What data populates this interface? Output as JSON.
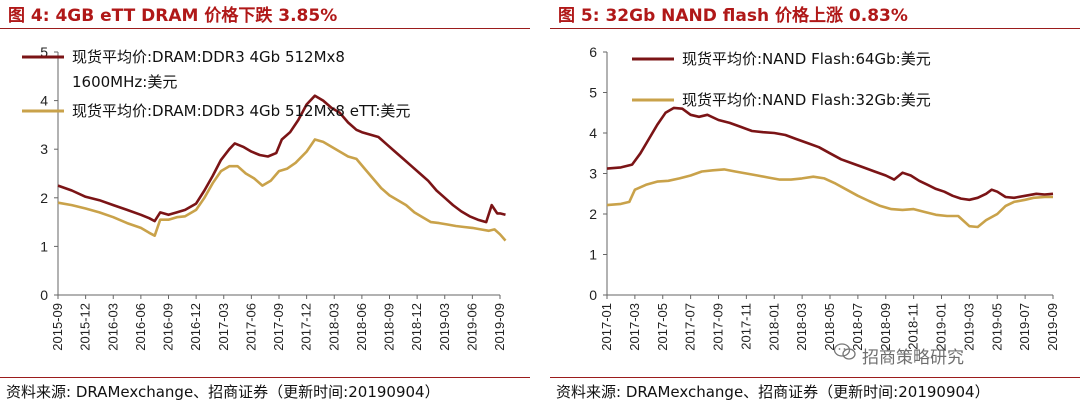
{
  "figures": [
    {
      "title": "图 4:  4GB eTT DRAM 价格下跌 3.85%",
      "source": "资料来源:  DRAMexchange、招商证券（更新时间:20190904）",
      "chart_data": {
        "type": "line",
        "x_ticks": [
          "2015-09",
          "2015-12",
          "2016-03",
          "2016-06",
          "2016-09",
          "2016-12",
          "2017-03",
          "2017-06",
          "2017-09",
          "2017-12",
          "2018-03",
          "2018-06",
          "2018-09",
          "2018-12",
          "2019-03",
          "2019-06",
          "2019-09"
        ],
        "ylim": [
          0,
          5
        ],
        "y_ticks": [
          "0",
          "1",
          "2",
          "3",
          "4",
          "5"
        ],
        "legend_position": "top-left",
        "series": [
          {
            "name": "现货平均价:DRAM:DDR3 4Gb 512Mx8 1600MHz:美元",
            "color": "#7b1416",
            "points": [
              [
                0,
                2.25
              ],
              [
                0.5,
                2.15
              ],
              [
                1,
                2.02
              ],
              [
                1.5,
                1.95
              ],
              [
                2,
                1.85
              ],
              [
                2.5,
                1.75
              ],
              [
                3,
                1.65
              ],
              [
                3.3,
                1.58
              ],
              [
                3.5,
                1.52
              ],
              [
                3.7,
                1.7
              ],
              [
                4,
                1.65
              ],
              [
                4.3,
                1.7
              ],
              [
                4.6,
                1.75
              ],
              [
                5,
                1.88
              ],
              [
                5.3,
                2.15
              ],
              [
                5.6,
                2.45
              ],
              [
                5.9,
                2.78
              ],
              [
                6.2,
                3.0
              ],
              [
                6.4,
                3.12
              ],
              [
                6.7,
                3.05
              ],
              [
                7,
                2.95
              ],
              [
                7.3,
                2.88
              ],
              [
                7.6,
                2.85
              ],
              [
                7.9,
                2.92
              ],
              [
                8.1,
                3.2
              ],
              [
                8.4,
                3.35
              ],
              [
                8.7,
                3.6
              ],
              [
                9,
                3.92
              ],
              [
                9.3,
                4.1
              ],
              [
                9.6,
                4.0
              ],
              [
                9.9,
                3.85
              ],
              [
                10.2,
                3.75
              ],
              [
                10.5,
                3.55
              ],
              [
                10.8,
                3.4
              ],
              [
                11,
                3.35
              ],
              [
                11.3,
                3.3
              ],
              [
                11.6,
                3.25
              ],
              [
                11.9,
                3.1
              ],
              [
                12.2,
                2.95
              ],
              [
                12.5,
                2.8
              ],
              [
                12.8,
                2.65
              ],
              [
                13.1,
                2.5
              ],
              [
                13.4,
                2.35
              ],
              [
                13.7,
                2.15
              ],
              [
                14,
                2.0
              ],
              [
                14.3,
                1.85
              ],
              [
                14.6,
                1.72
              ],
              [
                14.9,
                1.62
              ],
              [
                15.2,
                1.55
              ],
              [
                15.5,
                1.5
              ],
              [
                15.7,
                1.85
              ],
              [
                15.9,
                1.68
              ],
              [
                16,
                1.68
              ],
              [
                16.2,
                1.65
              ]
            ]
          },
          {
            "name": "现货平均价:DRAM:DDR3 4Gb 512Mx8 eTT:美元",
            "color": "#c9a24a",
            "points": [
              [
                0,
                1.9
              ],
              [
                0.5,
                1.85
              ],
              [
                1,
                1.78
              ],
              [
                1.5,
                1.7
              ],
              [
                2,
                1.6
              ],
              [
                2.5,
                1.48
              ],
              [
                3,
                1.38
              ],
              [
                3.3,
                1.28
              ],
              [
                3.5,
                1.22
              ],
              [
                3.7,
                1.55
              ],
              [
                4,
                1.55
              ],
              [
                4.3,
                1.6
              ],
              [
                4.6,
                1.62
              ],
              [
                5,
                1.75
              ],
              [
                5.3,
                2.0
              ],
              [
                5.6,
                2.3
              ],
              [
                5.9,
                2.55
              ],
              [
                6.2,
                2.65
              ],
              [
                6.5,
                2.65
              ],
              [
                6.8,
                2.5
              ],
              [
                7.1,
                2.4
              ],
              [
                7.4,
                2.25
              ],
              [
                7.7,
                2.35
              ],
              [
                8,
                2.55
              ],
              [
                8.3,
                2.6
              ],
              [
                8.6,
                2.72
              ],
              [
                9,
                2.95
              ],
              [
                9.3,
                3.2
              ],
              [
                9.6,
                3.15
              ],
              [
                9.9,
                3.05
              ],
              [
                10.2,
                2.95
              ],
              [
                10.5,
                2.85
              ],
              [
                10.8,
                2.8
              ],
              [
                11.1,
                2.6
              ],
              [
                11.4,
                2.4
              ],
              [
                11.7,
                2.2
              ],
              [
                12,
                2.05
              ],
              [
                12.3,
                1.95
              ],
              [
                12.6,
                1.85
              ],
              [
                12.9,
                1.7
              ],
              [
                13.2,
                1.6
              ],
              [
                13.5,
                1.5
              ],
              [
                13.8,
                1.48
              ],
              [
                14.1,
                1.45
              ],
              [
                14.4,
                1.42
              ],
              [
                14.7,
                1.4
              ],
              [
                15,
                1.38
              ],
              [
                15.3,
                1.35
              ],
              [
                15.6,
                1.32
              ],
              [
                15.8,
                1.35
              ],
              [
                16,
                1.25
              ],
              [
                16.2,
                1.12
              ]
            ]
          }
        ]
      }
    },
    {
      "title": "图 5:  32Gb NAND flash 价格上涨 0.83%",
      "source": "资料来源:  DRAMexchange、招商证券（更新时间:20190904）",
      "chart_data": {
        "type": "line",
        "x_ticks": [
          "2017-01",
          "2017-03",
          "2017-05",
          "2017-07",
          "2017-09",
          "2017-11",
          "2018-01",
          "2018-03",
          "2018-05",
          "2018-07",
          "2018-09",
          "2018-11",
          "2019-01",
          "2019-03",
          "2019-05",
          "2019-07",
          "2019-09"
        ],
        "ylim": [
          0,
          6
        ],
        "y_ticks": [
          "0",
          "1",
          "2",
          "3",
          "4",
          "5",
          "6"
        ],
        "legend_position": "top-left",
        "series": [
          {
            "name": "现货平均价:NAND Flash:64Gb:美元",
            "color": "#7b1416",
            "points": [
              [
                0,
                3.12
              ],
              [
                0.5,
                3.15
              ],
              [
                0.9,
                3.22
              ],
              [
                1.2,
                3.5
              ],
              [
                1.5,
                3.85
              ],
              [
                1.8,
                4.2
              ],
              [
                2.1,
                4.5
              ],
              [
                2.4,
                4.62
              ],
              [
                2.7,
                4.6
              ],
              [
                3,
                4.45
              ],
              [
                3.3,
                4.4
              ],
              [
                3.6,
                4.45
              ],
              [
                4,
                4.32
              ],
              [
                4.4,
                4.25
              ],
              [
                4.8,
                4.15
              ],
              [
                5.2,
                4.05
              ],
              [
                5.6,
                4.02
              ],
              [
                6,
                4.0
              ],
              [
                6.4,
                3.95
              ],
              [
                6.8,
                3.85
              ],
              [
                7.2,
                3.75
              ],
              [
                7.6,
                3.65
              ],
              [
                8,
                3.5
              ],
              [
                8.4,
                3.35
              ],
              [
                8.8,
                3.25
              ],
              [
                9.2,
                3.15
              ],
              [
                9.6,
                3.05
              ],
              [
                10,
                2.95
              ],
              [
                10.3,
                2.85
              ],
              [
                10.6,
                3.02
              ],
              [
                10.9,
                2.95
              ],
              [
                11.2,
                2.82
              ],
              [
                11.5,
                2.72
              ],
              [
                11.8,
                2.62
              ],
              [
                12.1,
                2.55
              ],
              [
                12.4,
                2.45
              ],
              [
                12.7,
                2.38
              ],
              [
                13,
                2.35
              ],
              [
                13.3,
                2.4
              ],
              [
                13.6,
                2.5
              ],
              [
                13.8,
                2.6
              ],
              [
                14,
                2.55
              ],
              [
                14.3,
                2.42
              ],
              [
                14.6,
                2.4
              ],
              [
                15,
                2.45
              ],
              [
                15.4,
                2.5
              ],
              [
                15.7,
                2.48
              ],
              [
                16,
                2.5
              ]
            ]
          },
          {
            "name": "现货平均价:NAND Flash:32Gb:美元",
            "color": "#c9a24a",
            "points": [
              [
                0,
                2.22
              ],
              [
                0.5,
                2.25
              ],
              [
                0.8,
                2.3
              ],
              [
                1,
                2.6
              ],
              [
                1.4,
                2.72
              ],
              [
                1.8,
                2.8
              ],
              [
                2.2,
                2.82
              ],
              [
                2.6,
                2.88
              ],
              [
                3,
                2.95
              ],
              [
                3.4,
                3.05
              ],
              [
                3.8,
                3.08
              ],
              [
                4.2,
                3.1
              ],
              [
                4.6,
                3.05
              ],
              [
                5,
                3.0
              ],
              [
                5.4,
                2.95
              ],
              [
                5.8,
                2.9
              ],
              [
                6.2,
                2.85
              ],
              [
                6.6,
                2.85
              ],
              [
                7,
                2.88
              ],
              [
                7.4,
                2.92
              ],
              [
                7.8,
                2.88
              ],
              [
                8.2,
                2.75
              ],
              [
                8.6,
                2.6
              ],
              [
                9,
                2.45
              ],
              [
                9.4,
                2.32
              ],
              [
                9.8,
                2.2
              ],
              [
                10.2,
                2.12
              ],
              [
                10.6,
                2.1
              ],
              [
                11,
                2.12
              ],
              [
                11.4,
                2.05
              ],
              [
                11.8,
                1.98
              ],
              [
                12.2,
                1.95
              ],
              [
                12.6,
                1.95
              ],
              [
                13,
                1.7
              ],
              [
                13.3,
                1.68
              ],
              [
                13.6,
                1.85
              ],
              [
                14,
                2.0
              ],
              [
                14.3,
                2.2
              ],
              [
                14.6,
                2.3
              ],
              [
                15,
                2.35
              ],
              [
                15.3,
                2.4
              ],
              [
                15.7,
                2.42
              ],
              [
                16,
                2.42
              ]
            ]
          }
        ]
      }
    }
  ],
  "watermark": "招商策略研究",
  "icons": {
    "watermark_icon": "wechat-icon"
  }
}
